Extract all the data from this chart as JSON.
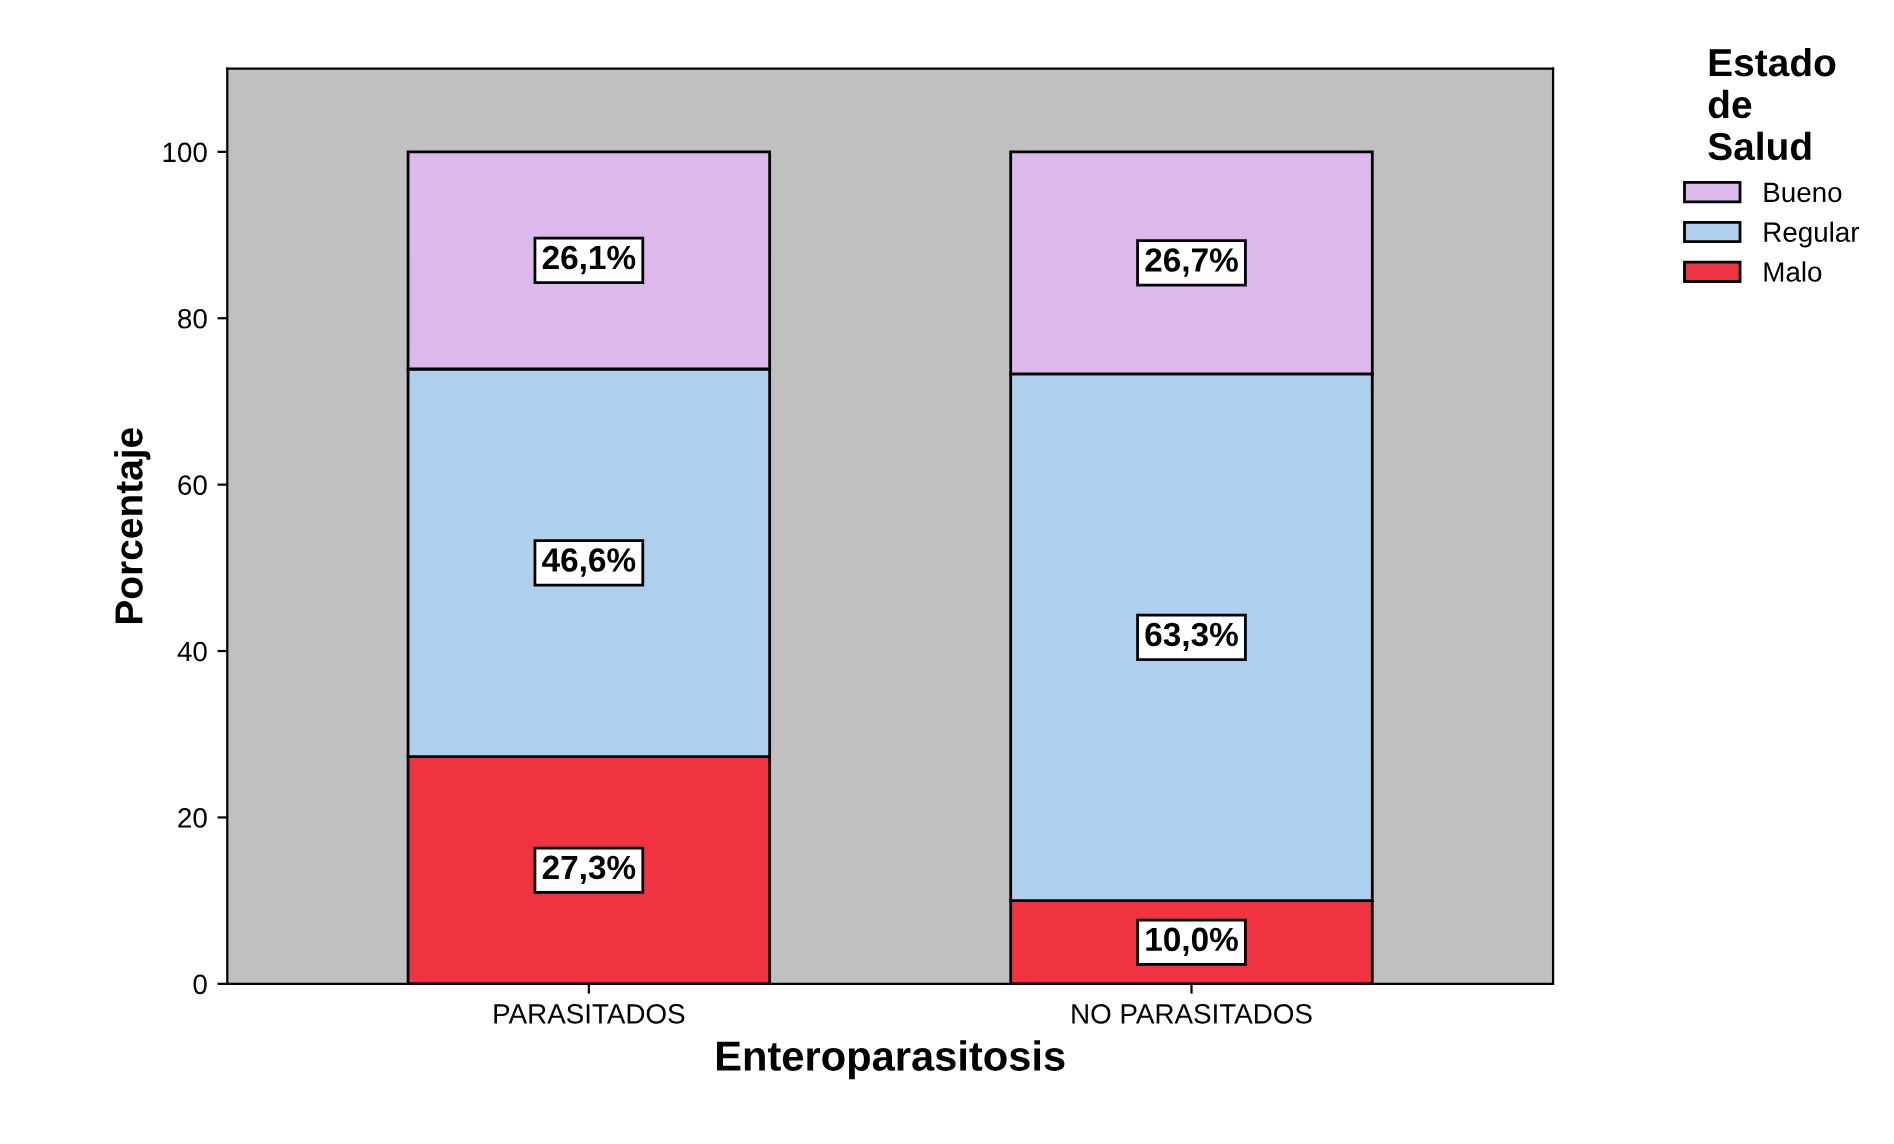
{
  "chart_data": {
    "type": "bar",
    "stacked": true,
    "xlabel": "Enteroparasitosis",
    "ylabel": "Porcentaje",
    "legend_title": "Estado\nde\nSalud",
    "legend": "top right",
    "grid": false,
    "categories": [
      "PARASITADOS",
      "NO PARASITADOS"
    ],
    "ylim": [
      0,
      110
    ],
    "yticks": [
      0,
      20,
      40,
      60,
      80,
      100
    ],
    "series": [
      {
        "name": "Malo",
        "color": "#ef3340",
        "values": [
          27.3,
          10.0
        ],
        "value_labels": [
          "27,3%",
          "10,0%"
        ]
      },
      {
        "name": "Regular",
        "color": "#aecfed",
        "values": [
          46.6,
          63.3
        ],
        "value_labels": [
          "46,6%",
          "63,3%"
        ]
      },
      {
        "name": "Bueno",
        "color": "#dcb8ec",
        "values": [
          26.1,
          26.7
        ],
        "value_labels": [
          "26,1%",
          "26,7%"
        ]
      }
    ]
  }
}
